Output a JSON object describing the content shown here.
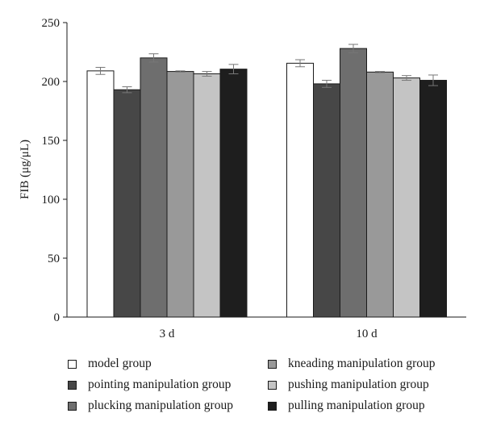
{
  "chart_data": {
    "type": "bar",
    "categories": [
      "3 d",
      "10 d"
    ],
    "series": [
      {
        "name": "model group",
        "values": [
          209,
          215.5
        ],
        "errors": [
          3,
          3
        ],
        "color": "#ffffff"
      },
      {
        "name": "pointing manipulation group",
        "values": [
          193,
          198
        ],
        "errors": [
          2.5,
          3
        ],
        "color": "#474747"
      },
      {
        "name": "plucking manipulation group",
        "values": [
          220,
          228
        ],
        "errors": [
          3.5,
          3.5
        ],
        "color": "#6e6e6e"
      },
      {
        "name": "kneading manipulation group",
        "values": [
          208.5,
          208
        ],
        "errors": [
          0.5,
          0.5
        ],
        "color": "#999999"
      },
      {
        "name": "pushing manipulation group",
        "values": [
          206.5,
          203
        ],
        "errors": [
          2,
          2
        ],
        "color": "#c4c4c4"
      },
      {
        "name": "pulling manipulation group",
        "values": [
          210.5,
          201
        ],
        "errors": [
          4,
          4.5
        ],
        "color": "#1e1e1e"
      }
    ],
    "ylabel": "FIB (μg/μL)",
    "ylim": [
      0,
      250
    ],
    "yticks": [
      0,
      50,
      100,
      150,
      200,
      250
    ],
    "legend_position": "bottom"
  },
  "legend": {
    "items": [
      {
        "label": "model group",
        "color": "#ffffff"
      },
      {
        "label": "kneading manipulation group",
        "color": "#999999"
      },
      {
        "label": "pointing manipulation group",
        "color": "#474747"
      },
      {
        "label": "pushing manipulation group",
        "color": "#c4c4c4"
      },
      {
        "label": "plucking manipulation group",
        "color": "#6e6e6e"
      },
      {
        "label": "pulling manipulation group",
        "color": "#1e1e1e"
      }
    ]
  }
}
